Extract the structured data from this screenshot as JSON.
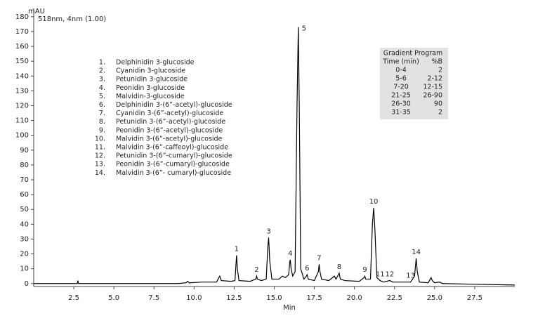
{
  "chart_data": {
    "type": "line",
    "y_unit_label": "mAU",
    "subtitle": "518nm, 4nm (1.00)",
    "x_label": "Min",
    "color": "#000000",
    "xlim": [
      0,
      30
    ],
    "ylim": [
      -2,
      180
    ],
    "xticks": [
      {
        "value": 2.5,
        "label": "2.5"
      },
      {
        "value": 5,
        "label": "5.0"
      },
      {
        "value": 7.5,
        "label": "7.5"
      },
      {
        "value": 10,
        "label": "10.0"
      },
      {
        "value": 12.5,
        "label": "12.5"
      },
      {
        "value": 15,
        "label": "15.0"
      },
      {
        "value": 17.5,
        "label": "17.5"
      },
      {
        "value": 20,
        "label": "20.0"
      },
      {
        "value": 22.5,
        "label": "22.5"
      },
      {
        "value": 25,
        "label": "25.0"
      },
      {
        "value": 27.5,
        "label": "27.5"
      }
    ],
    "yticks": [
      0,
      10,
      20,
      30,
      40,
      50,
      60,
      70,
      80,
      90,
      100,
      110,
      120,
      130,
      140,
      150,
      160,
      170,
      180
    ],
    "x": [
      0,
      2.6,
      2.72,
      2.75,
      2.8,
      5,
      7.5,
      9,
      9.5,
      9.6,
      9.7,
      10.5,
      11.4,
      11.55,
      11.6,
      11.7,
      12.3,
      12.55,
      12.62,
      12.65,
      12.7,
      12.8,
      13.5,
      13.85,
      13.9,
      13.95,
      14.2,
      14.5,
      14.6,
      14.65,
      14.72,
      14.85,
      15.3,
      15.5,
      15.7,
      15.9,
      15.97,
      16.0,
      16.05,
      16.15,
      16.3,
      16.42,
      16.5,
      16.56,
      16.65,
      16.85,
      17.0,
      17.05,
      17.12,
      17.5,
      17.75,
      17.8,
      17.85,
      17.95,
      18.4,
      18.75,
      18.85,
      19.0,
      19.05,
      19.12,
      19.4,
      20.3,
      20.6,
      20.65,
      20.7,
      21.0,
      21.12,
      21.2,
      21.27,
      21.4,
      21.6,
      21.8,
      22.2,
      22.4,
      23.5,
      23.75,
      23.85,
      23.92,
      24.05,
      24.6,
      24.78,
      24.85,
      25,
      25.3,
      25.5,
      27.5,
      30
    ],
    "values": [
      0,
      0,
      0,
      2,
      0,
      0,
      0,
      0,
      0.5,
      1.5,
      0.5,
      1,
      1,
      4,
      5,
      2,
      1.5,
      2,
      14,
      19,
      10,
      2,
      1.5,
      3,
      5,
      3,
      2,
      3,
      25,
      31,
      15,
      3,
      3,
      5,
      4,
      6,
      15,
      16,
      10,
      5,
      8,
      120,
      173,
      120,
      10,
      3,
      5,
      6,
      3,
      2,
      8,
      13,
      8,
      3,
      2,
      5,
      3,
      6,
      7,
      3,
      2,
      1.5,
      4,
      5,
      3,
      3,
      40,
      51,
      38,
      4,
      2,
      1,
      2,
      1,
      1,
      5,
      17,
      8,
      1,
      0.5,
      4,
      2,
      0.5,
      1,
      0,
      -0.5,
      -1
    ],
    "peaks": [
      {
        "label": "1",
        "time": 12.65
      },
      {
        "label": "2",
        "time": 13.9
      },
      {
        "label": "3",
        "time": 14.65
      },
      {
        "label": "4",
        "time": 16.0
      },
      {
        "label": "5",
        "time": 16.5
      },
      {
        "label": "6",
        "time": 17.05
      },
      {
        "label": "7",
        "time": 17.8
      },
      {
        "label": "8",
        "time": 19.05
      },
      {
        "label": "9",
        "time": 20.65
      },
      {
        "label": "10",
        "time": 21.2
      },
      {
        "label": "11",
        "time": 21.6
      },
      {
        "label": "12",
        "time": 22.2
      },
      {
        "label": "13",
        "time": 23.5
      },
      {
        "label": "14",
        "time": 23.85
      }
    ],
    "compounds": [
      {
        "num": "1.",
        "name": "Delphinidin 3-glucoside"
      },
      {
        "num": "2.",
        "name": "Cyanidin 3-glucoside"
      },
      {
        "num": "3.",
        "name": "Petunidin 3-glucoside"
      },
      {
        "num": "4.",
        "name": "Peonidin 3-glucoside"
      },
      {
        "num": "5.",
        "name": "Malvidin-3-glucoside"
      },
      {
        "num": "6.",
        "name": "Delphinidin 3-(6”-acetyl)-glucoside"
      },
      {
        "num": "7.",
        "name": "Cyanidin 3-(6”-acetyl)-glucoside"
      },
      {
        "num": "8.",
        "name": "Petunidin 3-(6”-acetyl)-glucoside"
      },
      {
        "num": "9.",
        "name": "Peonidin 3-(6”-acetyl)-glucoside"
      },
      {
        "num": "10.",
        "name": "Malvidin 3-(6”-acetyl)-glucoside"
      },
      {
        "num": "11.",
        "name": "Malvidin 3-(6”-caffeoyl)-glucoside"
      },
      {
        "num": "12.",
        "name": "Petunidin 3-(6”-cumaryl)-glucoside"
      },
      {
        "num": "13.",
        "name": "Peonidin 3-(6”-cumaryl)-glucoside"
      },
      {
        "num": "14.",
        "name": "Malvidin 3-(6”- cumaryl)-glucoside"
      }
    ],
    "gradient": {
      "title": "Gradient Program",
      "header": [
        "Time (min)",
        "%B"
      ],
      "rows": [
        [
          "0-4",
          "2"
        ],
        [
          "5-6",
          "2-12"
        ],
        [
          "7-20",
          "12-15"
        ],
        [
          "21-25",
          "26-90"
        ],
        [
          "26-30",
          "90"
        ],
        [
          "31-35",
          "2"
        ]
      ]
    }
  }
}
